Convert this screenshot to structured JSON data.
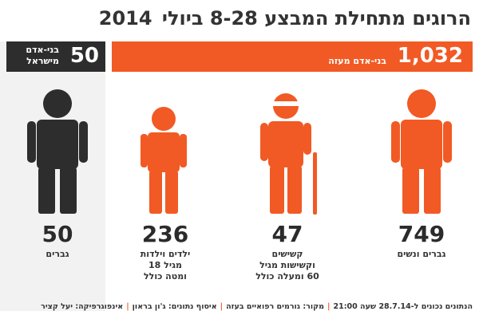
{
  "title": {
    "text": "הרוגים מתחילת המבצע 8-28 ביולי",
    "year": "2014"
  },
  "colors": {
    "gaza": "#f15a24",
    "israel": "#2d2d2d",
    "panel": "#f2f2f2"
  },
  "totals": {
    "gaza": {
      "value": "1,032",
      "label": "בני-אדם מעזה"
    },
    "israel": {
      "value": "50",
      "label": "בני-אדם מישראל"
    }
  },
  "chart_data": {
    "type": "bar",
    "title": "הרוגים מתחילת המבצע 8-28 ביולי 2014",
    "series": [
      {
        "name": "בני-אדם מעזה",
        "total": 1032,
        "categories": [
          "גברים ונשים",
          "קשישים וקשישות מגיל 60 ומעלה כולל",
          "ילדים וילדות מגיל 18 ומטה כולל"
        ],
        "values": [
          749,
          47,
          236
        ]
      },
      {
        "name": "בני-אדם מישראל",
        "total": 50,
        "categories": [
          "גברים"
        ],
        "values": [
          50
        ]
      }
    ]
  },
  "stats": [
    {
      "count": "749",
      "desc": "גברים ונשים",
      "icon": "adult-icon"
    },
    {
      "count": "47",
      "desc": "קשישים\nוקשישות מגיל\n60 ומעלה כולל",
      "icon": "elderly-icon"
    },
    {
      "count": "236",
      "desc": "ילדים וילדות\nמגיל 18\nומטה כולל",
      "icon": "child-icon"
    },
    {
      "count": "50",
      "desc": "גברים",
      "icon": "man-icon"
    }
  ],
  "footer": {
    "note": "הנתונים נכונים ל-28.7.14 שעה 21:00",
    "source": "מקור: גורמים רפואיים בעזה",
    "data_collection": "איסוף נתונים: ג'ון בראון",
    "infographic": "אינפוגרפיקה: יעל קציר"
  }
}
